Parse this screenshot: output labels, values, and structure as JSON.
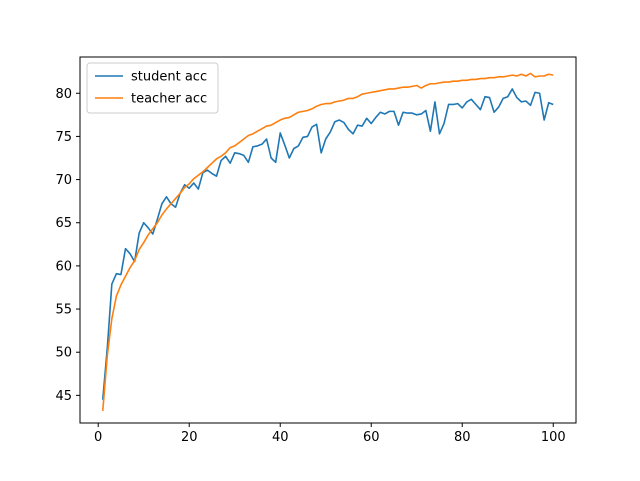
{
  "chart_data": {
    "type": "line",
    "title": "",
    "xlabel": "",
    "ylabel": "",
    "xlim": [
      -4,
      105
    ],
    "ylim": [
      41.8,
      84.2
    ],
    "xticks": [
      0,
      20,
      40,
      60,
      80,
      100
    ],
    "yticks": [
      45,
      50,
      55,
      60,
      65,
      70,
      75,
      80
    ],
    "grid": false,
    "legend_position": "upper-left",
    "x": [
      1,
      2,
      3,
      4,
      5,
      6,
      7,
      8,
      9,
      10,
      11,
      12,
      13,
      14,
      15,
      16,
      17,
      18,
      19,
      20,
      21,
      22,
      23,
      24,
      25,
      26,
      27,
      28,
      29,
      30,
      31,
      32,
      33,
      34,
      35,
      36,
      37,
      38,
      39,
      40,
      41,
      42,
      43,
      44,
      45,
      46,
      47,
      48,
      49,
      50,
      51,
      52,
      53,
      54,
      55,
      56,
      57,
      58,
      59,
      60,
      61,
      62,
      63,
      64,
      65,
      66,
      67,
      68,
      69,
      70,
      71,
      72,
      73,
      74,
      75,
      76,
      77,
      78,
      79,
      80,
      81,
      82,
      83,
      84,
      85,
      86,
      87,
      88,
      89,
      90,
      91,
      92,
      93,
      94,
      95,
      96,
      97,
      98,
      99,
      100
    ],
    "series": [
      {
        "name": "student acc",
        "color": "#1f77b4",
        "values": [
          44.5,
          50.5,
          57.9,
          59.1,
          59.0,
          62.0,
          61.4,
          60.5,
          63.8,
          65.0,
          64.4,
          63.7,
          65.4,
          67.2,
          68.0,
          67.2,
          66.8,
          68.4,
          69.4,
          69.0,
          69.6,
          68.9,
          70.8,
          71.1,
          70.7,
          70.4,
          72.2,
          72.7,
          71.9,
          73.1,
          73.0,
          72.8,
          72.0,
          73.8,
          73.9,
          74.1,
          74.7,
          72.5,
          72.0,
          75.4,
          74.0,
          72.5,
          73.6,
          73.9,
          74.9,
          75.0,
          76.1,
          76.4,
          73.1,
          74.7,
          75.5,
          76.7,
          76.9,
          76.6,
          75.8,
          75.3,
          76.3,
          76.2,
          77.1,
          76.5,
          77.2,
          77.8,
          77.6,
          77.9,
          77.9,
          76.3,
          77.8,
          77.7,
          77.7,
          77.5,
          77.6,
          78.0,
          75.6,
          79.0,
          75.3,
          76.5,
          78.7,
          78.7,
          78.8,
          78.3,
          79.0,
          79.3,
          78.7,
          78.1,
          79.6,
          79.5,
          77.8,
          78.4,
          79.4,
          79.6,
          80.5,
          79.5,
          79.0,
          79.1,
          78.6,
          80.1,
          80.0,
          76.9,
          78.9,
          78.7
        ]
      },
      {
        "name": "teacher acc",
        "color": "#ff7f0e",
        "values": [
          43.2,
          49.6,
          53.9,
          56.5,
          57.8,
          58.8,
          59.8,
          60.6,
          61.9,
          62.7,
          63.6,
          64.3,
          65.0,
          65.9,
          66.6,
          67.2,
          67.8,
          68.4,
          69.1,
          69.5,
          70.1,
          70.5,
          70.9,
          71.4,
          71.9,
          72.4,
          72.7,
          73.1,
          73.7,
          73.9,
          74.3,
          74.7,
          75.1,
          75.3,
          75.6,
          75.9,
          76.2,
          76.3,
          76.6,
          76.9,
          77.1,
          77.2,
          77.5,
          77.8,
          77.9,
          78.0,
          78.2,
          78.5,
          78.7,
          78.8,
          78.8,
          79.0,
          79.1,
          79.2,
          79.4,
          79.4,
          79.6,
          79.9,
          80.0,
          80.1,
          80.2,
          80.3,
          80.4,
          80.5,
          80.5,
          80.6,
          80.7,
          80.7,
          80.8,
          80.9,
          80.6,
          80.9,
          81.1,
          81.1,
          81.2,
          81.3,
          81.3,
          81.4,
          81.4,
          81.5,
          81.5,
          81.6,
          81.6,
          81.7,
          81.7,
          81.8,
          81.8,
          81.9,
          81.9,
          82.0,
          82.1,
          82.0,
          82.2,
          82.0,
          82.3,
          81.9,
          82.0,
          82.0,
          82.2,
          82.1
        ]
      }
    ]
  }
}
